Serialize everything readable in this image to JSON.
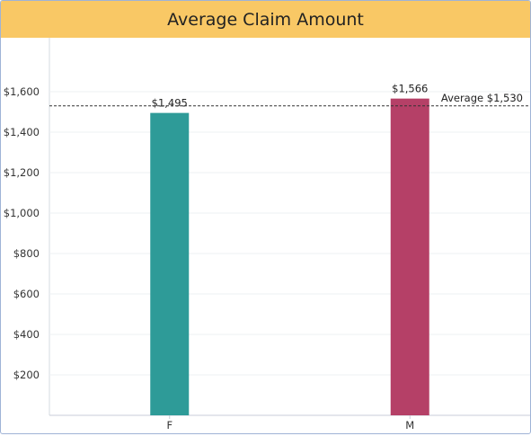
{
  "chart_data": {
    "type": "bar",
    "title": "Average Claim Amount",
    "categories": [
      "F",
      "M"
    ],
    "values": [
      1495,
      1566
    ],
    "value_labels": [
      "$1,495",
      "$1,566"
    ],
    "colors": [
      "#2e9b98",
      "#b54067"
    ],
    "ylim": [
      0,
      1800
    ],
    "yticks": [
      200,
      400,
      600,
      800,
      1000,
      1200,
      1400,
      1600
    ],
    "ytick_labels": [
      "$200",
      "$400",
      "$600",
      "$800",
      "$1,000",
      "$1,200",
      "$1,400",
      "$1,600"
    ],
    "reference_line": {
      "value": 1530,
      "label": "Average $1,530",
      "style": "dashed"
    },
    "grid": true,
    "xlabel": "",
    "ylabel": ""
  }
}
